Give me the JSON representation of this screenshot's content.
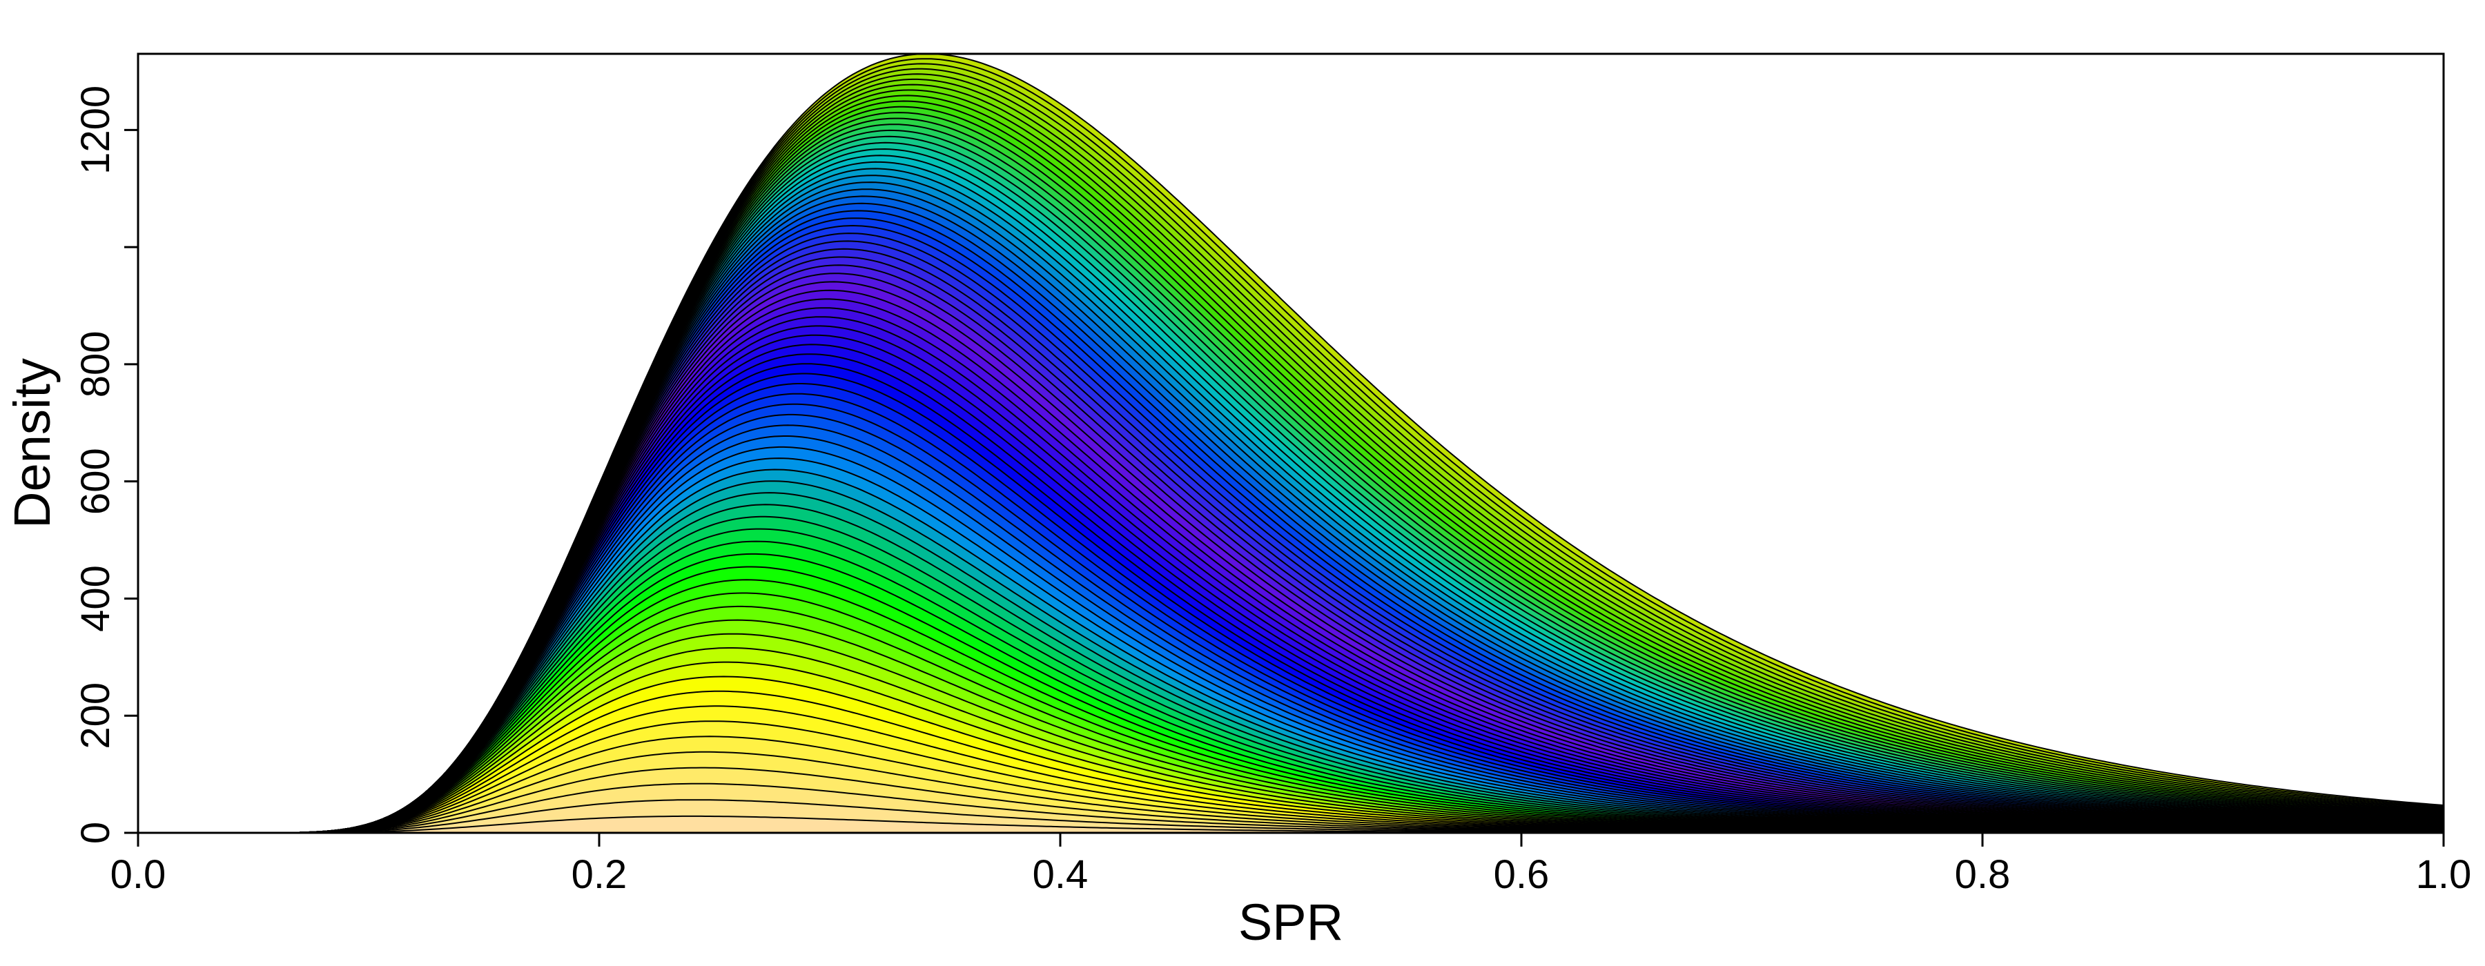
{
  "chart_data": {
    "type": "area",
    "subtype": "stacked-density",
    "title": "",
    "xlabel": "SPR",
    "ylabel": "Density",
    "xlim": [
      0.0,
      1.0
    ],
    "ylim": [
      0,
      1330
    ],
    "x_ticks": [
      0.0,
      0.2,
      0.4,
      0.6,
      0.8,
      1.0
    ],
    "x_tick_labels": [
      "0.0",
      "0.2",
      "0.4",
      "0.6",
      "0.8",
      "1.0"
    ],
    "y_ticks": [
      0,
      200,
      400,
      600,
      800,
      1000,
      1200
    ],
    "y_tick_labels": [
      "0",
      "200",
      "400",
      "600",
      "800",
      "",
      "1200"
    ],
    "grid": false,
    "legend": "none",
    "n_layers": 80,
    "layer_peak_location": {
      "first": 0.24,
      "last": 0.49
    },
    "bottom_layer_peak": 135,
    "total_peak": {
      "x": 0.39,
      "y": 1330
    },
    "color_ramp": [
      "#ffdfa0",
      "#ffff00",
      "#00ff00",
      "#0090f0",
      "#0000f0",
      "#6010e0",
      "#0040f0",
      "#00c0c0",
      "#40e000",
      "#c0e000"
    ],
    "outline_color": "#000000"
  }
}
